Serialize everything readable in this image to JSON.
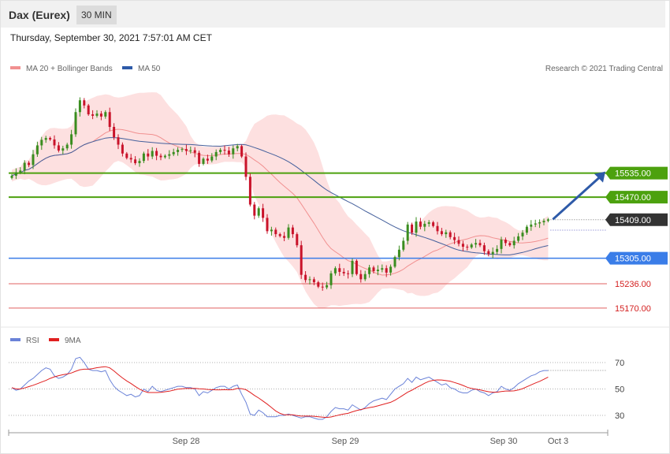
{
  "header": {
    "title": "Dax (Eurex)",
    "timeframe": "30 MIN"
  },
  "datetime": "Thursday, September 30, 2021 7:57:01 AM CET",
  "legend": {
    "ma20": "MA 20 + Bollinger Bands",
    "ma50": "MA 50",
    "credit": "Research © 2021 Trading Central"
  },
  "rsi_legend": {
    "rsi": "RSI",
    "ma": "9MA"
  },
  "colors": {
    "up": "#3a8d1f",
    "down": "#c9132a",
    "resistance": "#4ca10e",
    "support": "#3a7de8",
    "ma50": "#45609c",
    "band": "#fde0e0",
    "ma20": "#f19090",
    "rsi": "#6a82d8",
    "rsi_ma": "#e02020",
    "arrow": "#2e5aa8"
  },
  "chart_data": [
    {
      "type": "candlestick",
      "ylim": [
        15140,
        15790
      ],
      "x_ticks": [
        "Sep 28",
        "Sep 29",
        "Sep 30",
        "Oct 3"
      ],
      "levels": [
        {
          "label": "15535.00",
          "value": 15535,
          "kind": "resistance"
        },
        {
          "label": "15470.00",
          "value": 15470,
          "kind": "resistance"
        },
        {
          "label": "15409.00",
          "value": 15409,
          "kind": "last"
        },
        {
          "label": "15305.00",
          "value": 15305,
          "kind": "support"
        },
        {
          "label": "15236.00",
          "value": 15236,
          "kind": "target"
        },
        {
          "label": "15170.00",
          "value": 15170,
          "kind": "target"
        }
      ],
      "close": [
        15528,
        15537,
        15542,
        15563,
        15557,
        15586,
        15610,
        15625,
        15630,
        15626,
        15610,
        15596,
        15602,
        15612,
        15640,
        15700,
        15732,
        15718,
        15694,
        15690,
        15696,
        15688,
        15700,
        15660,
        15632,
        15612,
        15588,
        15576,
        15572,
        15562,
        15568,
        15588,
        15580,
        15595,
        15582,
        15578,
        15582,
        15586,
        15592,
        15598,
        15600,
        15595,
        15597,
        15590,
        15560,
        15574,
        15569,
        15580,
        15592,
        15598,
        15596,
        15586,
        15602,
        15608,
        15580,
        15525,
        15450,
        15420,
        15440,
        15414,
        15378,
        15382,
        15370,
        15365,
        15360,
        15388,
        15370,
        15340,
        15260,
        15246,
        15248,
        15240,
        15228,
        15226,
        15232,
        15264,
        15278,
        15268,
        15264,
        15262,
        15298,
        15262,
        15248,
        15262,
        15280,
        15270,
        15274,
        15278,
        15266,
        15282,
        15308,
        15328,
        15352,
        15396,
        15374,
        15404,
        15390,
        15398,
        15402,
        15392,
        15378,
        15370,
        15375,
        15362,
        15354,
        15344,
        15336,
        15334,
        15342,
        15346,
        15340,
        15324,
        15316,
        15322,
        15330,
        15355,
        15346,
        15340,
        15352,
        15364,
        15374,
        15390,
        15396,
        15399,
        15402,
        15406,
        15410
      ],
      "rsi": [
        51,
        49,
        50,
        53,
        56,
        58,
        61,
        64,
        66,
        65,
        60,
        58,
        59,
        61,
        65,
        73,
        74,
        70,
        65,
        64,
        64,
        63,
        64,
        57,
        52,
        49,
        47,
        45,
        46,
        44,
        45,
        50,
        48,
        52,
        49,
        48,
        49,
        50,
        51,
        52,
        52,
        51,
        51,
        50,
        45,
        48,
        47,
        49,
        51,
        52,
        52,
        50,
        52,
        53,
        46,
        40,
        31,
        30,
        34,
        32,
        29,
        29,
        29,
        30,
        30,
        31,
        30,
        29,
        28,
        29,
        29,
        28,
        27,
        27,
        29,
        33,
        36,
        35,
        35,
        34,
        38,
        36,
        34,
        36,
        39,
        41,
        42,
        43,
        42,
        46,
        50,
        52,
        54,
        58,
        55,
        59,
        57,
        58,
        59,
        57,
        55,
        53,
        54,
        51,
        50,
        48,
        47,
        47,
        49,
        50,
        48,
        47,
        45,
        47,
        48,
        52,
        50,
        49,
        51,
        54,
        56,
        58,
        60,
        61,
        63,
        64,
        64
      ]
    }
  ]
}
